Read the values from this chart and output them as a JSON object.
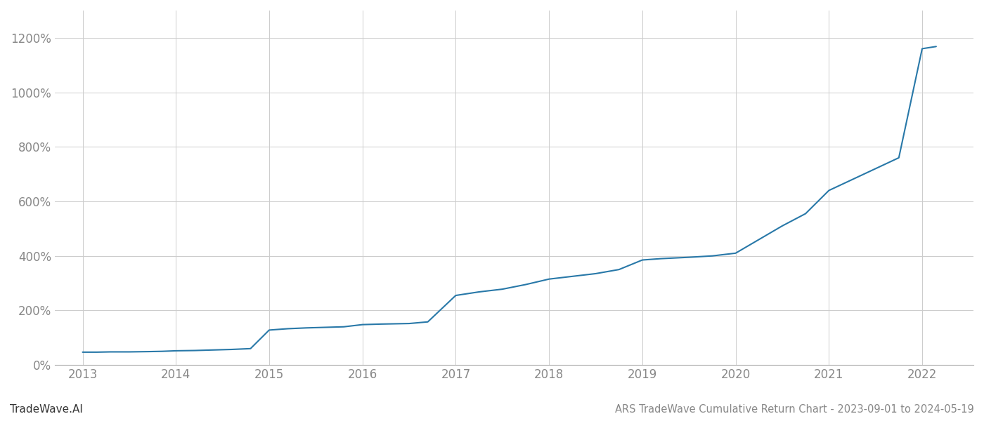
{
  "title": "ARS TradeWave Cumulative Return Chart - 2023-09-01 to 2024-05-19",
  "watermark": "TradeWave.AI",
  "line_color": "#2878a8",
  "background_color": "#ffffff",
  "grid_color": "#cccccc",
  "text_color": "#888888",
  "x_years": [
    2013,
    2014,
    2015,
    2016,
    2017,
    2018,
    2019,
    2020,
    2021,
    2022
  ],
  "x_values": [
    2013.0,
    2013.15,
    2013.3,
    2013.5,
    2013.7,
    2013.85,
    2014.0,
    2014.2,
    2014.4,
    2014.6,
    2014.8,
    2015.0,
    2015.2,
    2015.4,
    2015.6,
    2015.8,
    2016.0,
    2016.2,
    2016.5,
    2016.7,
    2017.0,
    2017.25,
    2017.5,
    2017.75,
    2018.0,
    2018.25,
    2018.5,
    2018.75,
    2019.0,
    2019.2,
    2019.5,
    2019.75,
    2020.0,
    2020.25,
    2020.5,
    2020.75,
    2021.0,
    2021.25,
    2021.5,
    2021.75,
    2022.0,
    2022.15
  ],
  "y_values": [
    47,
    47,
    48,
    48,
    49,
    50,
    52,
    53,
    55,
    57,
    60,
    128,
    133,
    136,
    138,
    140,
    148,
    150,
    152,
    158,
    255,
    268,
    278,
    295,
    315,
    325,
    335,
    350,
    385,
    390,
    395,
    400,
    410,
    460,
    510,
    555,
    640,
    680,
    720,
    760,
    1160,
    1168
  ],
  "ylim": [
    0,
    1300
  ],
  "xlim": [
    2012.7,
    2022.55
  ],
  "yticks": [
    0,
    200,
    400,
    600,
    800,
    1000,
    1200
  ],
  "ytick_labels": [
    "0%",
    "200%",
    "400%",
    "600%",
    "800%",
    "1000%",
    "1200%"
  ]
}
